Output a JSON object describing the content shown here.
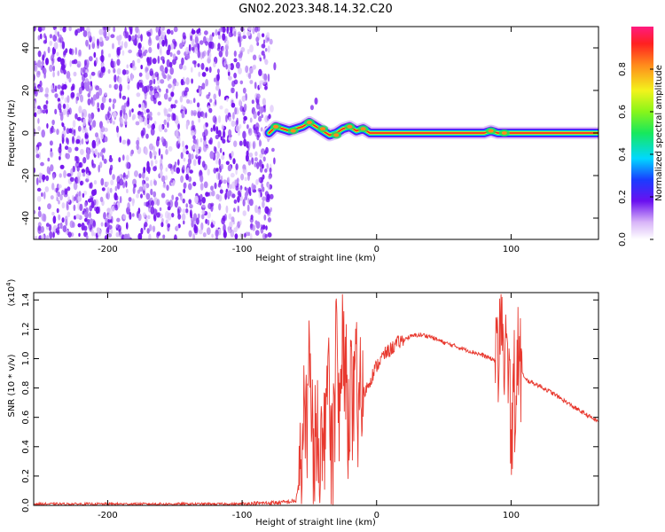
{
  "title": "GN02.2023.348.14.32.C20",
  "colors": {
    "spectrum_purple": "#7a1cf2",
    "snr_line": "#e8392f",
    "axis": "#000000"
  },
  "chart_data": [
    {
      "type": "heatmap",
      "xlabel": "Height of straight line (km)",
      "ylabel": "Frequency (Hz)",
      "xlim": [
        -255,
        165
      ],
      "ylim": [
        -50,
        50
      ],
      "x_ticks": [
        -200,
        -100,
        0,
        100
      ],
      "x_tick_labels": [
        "-200",
        "-100",
        "0",
        "100"
      ],
      "y_ticks": [
        -40,
        -20,
        0,
        20,
        40
      ],
      "y_tick_labels": [
        "-40",
        "-20",
        "0",
        "20",
        "40"
      ],
      "noise_region_x": [
        -255,
        -78
      ],
      "signal_track": {
        "x": [
          -80,
          -75,
          -70,
          -65,
          -60,
          -55,
          -50,
          -45,
          -40,
          -35,
          -30,
          -25,
          -20,
          -15,
          -10,
          -5,
          0,
          20,
          50,
          80,
          85,
          90,
          95,
          100,
          130,
          165
        ],
        "y": [
          0,
          3,
          2,
          1,
          2,
          3,
          5,
          3,
          1,
          -1,
          0,
          2,
          3,
          1,
          2,
          0,
          0,
          0,
          0,
          0,
          1,
          0,
          0,
          0,
          0,
          0
        ]
      },
      "colorbar": {
        "label": "Normalized spectral amplitude",
        "range": [
          0,
          1
        ],
        "ticks": [
          0.0,
          0.2,
          0.4,
          0.6,
          0.8
        ],
        "tick_labels": [
          "0.0",
          "0.2",
          "0.4",
          "0.6",
          "0.8"
        ]
      }
    },
    {
      "type": "line",
      "xlabel": "Height of straight line (km)",
      "ylabel": "SNR (10 * v/v)",
      "y_scale_label": "(x10",
      "y_scale_exponent": "4",
      "xlim": [
        -255,
        165
      ],
      "ylim": [
        0,
        1.45
      ],
      "x_ticks": [
        -200,
        -100,
        0,
        100
      ],
      "x_tick_labels": [
        "-200",
        "-100",
        "0",
        "100"
      ],
      "y_ticks": [
        0.0,
        0.2,
        0.4,
        0.6,
        0.8,
        1.0,
        1.2,
        1.4
      ],
      "y_tick_labels": [
        "0.0",
        "0.2",
        "0.4",
        "0.6",
        "0.8",
        "1.0",
        "1.2",
        "1.4"
      ],
      "series": [
        {
          "x": [
            -255,
            -200,
            -150,
            -100,
            -70,
            -60,
            -55,
            -50,
            -47,
            -44,
            -40,
            -37,
            -33,
            -30,
            -28,
            -25,
            -22,
            -20,
            -17,
            -15,
            -12,
            -10,
            -5,
            0,
            5,
            10,
            15,
            20,
            25,
            30,
            35,
            40,
            45,
            50,
            60,
            70,
            80,
            85,
            90,
            93,
            95,
            97,
            100,
            105,
            110,
            120,
            130,
            140,
            150,
            165
          ],
          "y": [
            0.01,
            0.01,
            0.01,
            0.01,
            0.02,
            0.03,
            0.35,
            0.9,
            0.3,
            0.6,
            0.2,
            1.0,
            0.3,
            1.1,
            0.5,
            1.2,
            0.6,
            0.75,
            0.65,
            0.72,
            0.68,
            0.75,
            0.85,
            0.95,
            1.02,
            1.06,
            1.1,
            1.13,
            1.15,
            1.16,
            1.16,
            1.15,
            1.13,
            1.11,
            1.08,
            1.05,
            1.02,
            1.0,
            0.98,
            1.4,
            0.6,
            1.3,
            0.5,
            1.0,
            0.86,
            0.82,
            0.77,
            0.71,
            0.65,
            0.57
          ]
        }
      ]
    }
  ]
}
